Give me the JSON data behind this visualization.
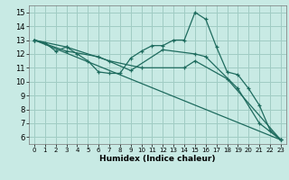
{
  "title": "",
  "xlabel": "Humidex (Indice chaleur)",
  "xlim": [
    -0.5,
    23.5
  ],
  "ylim": [
    5.5,
    15.5
  ],
  "xticks": [
    0,
    1,
    2,
    3,
    4,
    5,
    6,
    7,
    8,
    9,
    10,
    11,
    12,
    13,
    14,
    15,
    16,
    17,
    18,
    19,
    20,
    21,
    22,
    23
  ],
  "yticks": [
    6,
    7,
    8,
    9,
    10,
    11,
    12,
    13,
    14,
    15
  ],
  "bg_color": "#c8eae4",
  "grid_color": "#a0ccc4",
  "line_color": "#1e6b5e",
  "series1_x": [
    0,
    1,
    2,
    3,
    4,
    5,
    6,
    7,
    8,
    9,
    10,
    11,
    12,
    13,
    14,
    15,
    16,
    17,
    18,
    19,
    20,
    21,
    22,
    23
  ],
  "series1_y": [
    13.0,
    12.8,
    12.2,
    12.5,
    12.0,
    11.5,
    10.7,
    10.6,
    10.6,
    11.7,
    12.2,
    12.6,
    12.6,
    13.0,
    13.0,
    15.0,
    14.5,
    12.5,
    10.7,
    10.5,
    9.5,
    8.3,
    6.5,
    5.8
  ],
  "series2_x": [
    0,
    3,
    7,
    10,
    14,
    15,
    18,
    23
  ],
  "series2_y": [
    13.0,
    12.5,
    11.5,
    11.0,
    11.0,
    11.5,
    10.2,
    5.8
  ],
  "series3_x": [
    0,
    23
  ],
  "series3_y": [
    13.0,
    5.8
  ],
  "series4_x": [
    0,
    3,
    6,
    9,
    12,
    15,
    16,
    19,
    21,
    23
  ],
  "series4_y": [
    13.0,
    12.2,
    11.8,
    10.8,
    12.3,
    12.0,
    11.8,
    9.5,
    7.0,
    5.8
  ]
}
